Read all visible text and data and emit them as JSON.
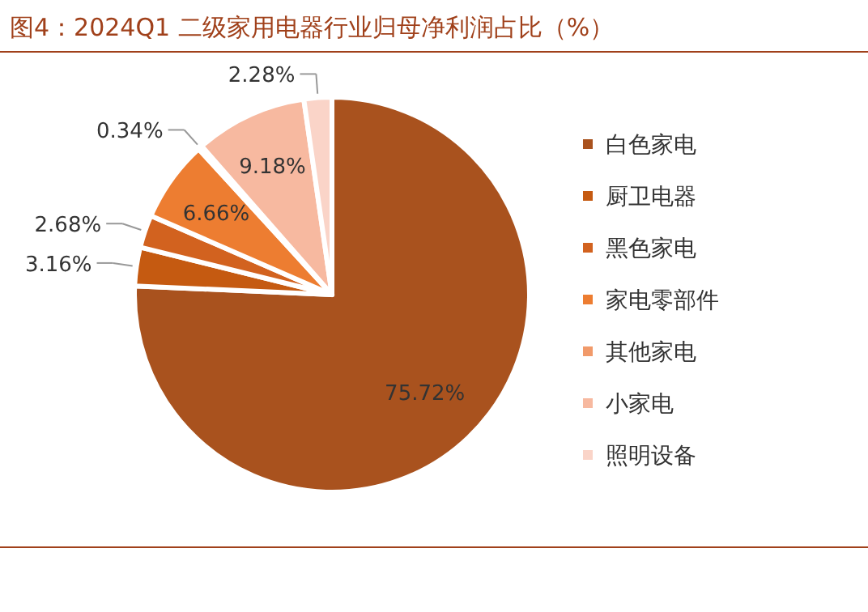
{
  "chart_data": {
    "type": "pie",
    "title": "图4：2024Q1 二级家用电器行业归母净利润占比（%）",
    "categories": [
      "白色家电",
      "厨卫电器",
      "黑色家电",
      "家电零部件",
      "其他家电",
      "小家电",
      "照明设备"
    ],
    "values": [
      75.72,
      3.16,
      2.68,
      6.66,
      0.34,
      9.18,
      2.28
    ],
    "value_labels": [
      "75.72%",
      "3.16%",
      "2.68%",
      "6.66%",
      "0.34%",
      "9.18%",
      "2.28%"
    ],
    "colors": [
      "#a9521e",
      "#c55a11",
      "#d2621f",
      "#ed7d31",
      "#f19a6a",
      "#f7b9a0",
      "#fad4c8"
    ],
    "legend": "right"
  }
}
